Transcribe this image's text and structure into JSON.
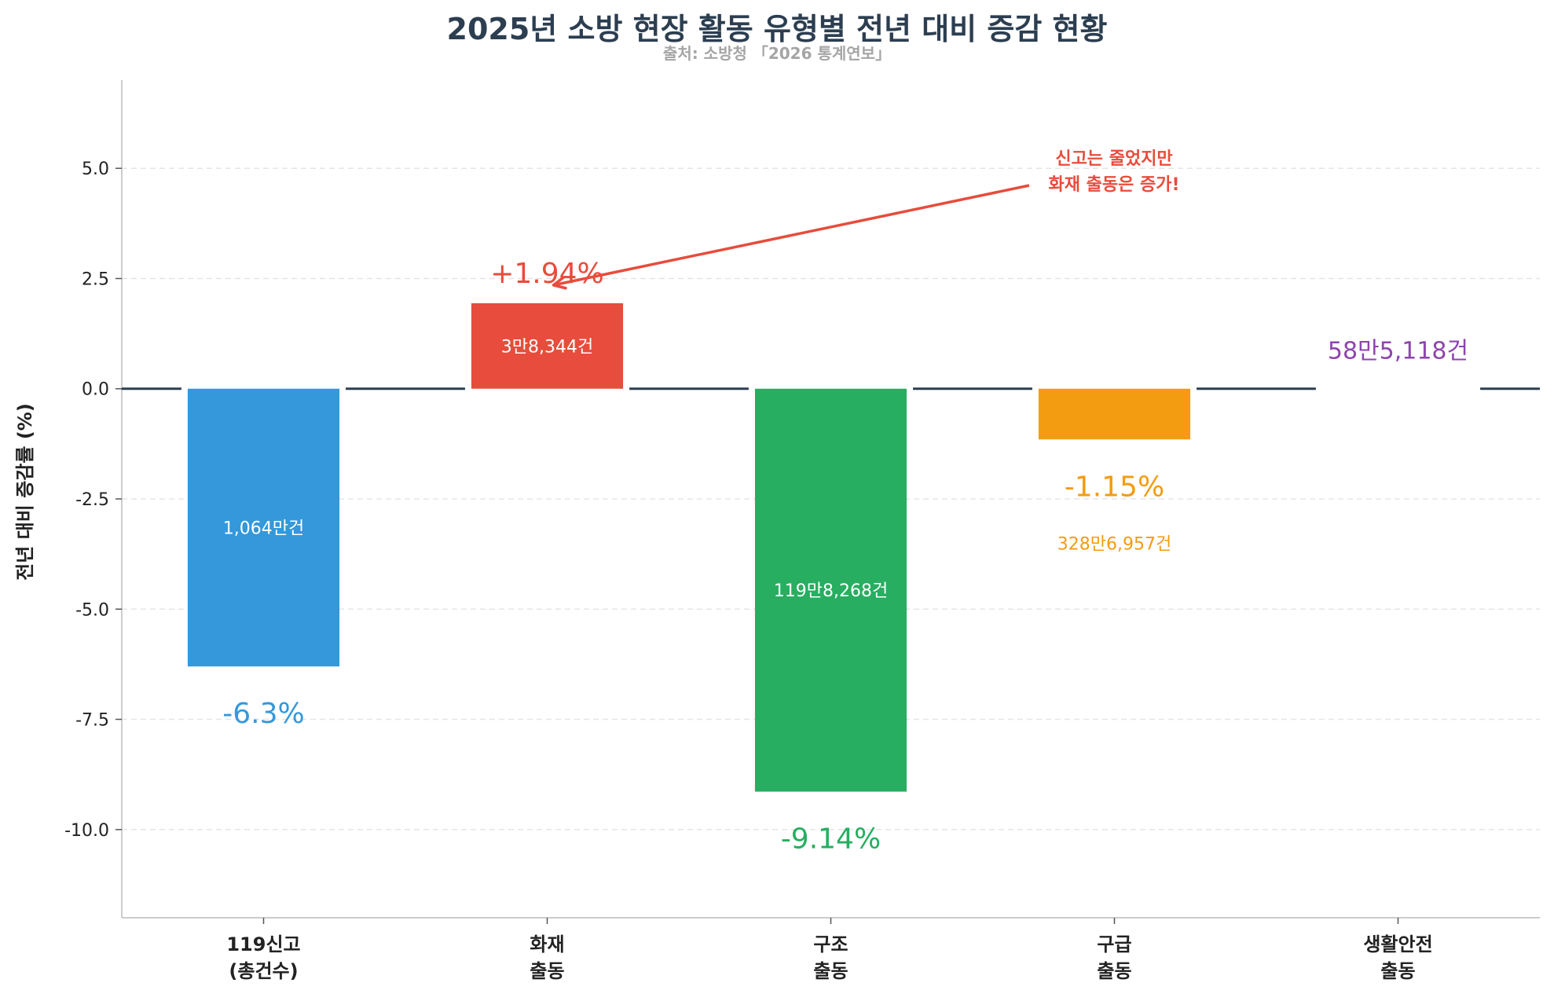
{
  "chart_data": {
    "type": "bar",
    "title": "2025년 소방 현장 활동 유형별 전년 대비 증감 현황",
    "subtitle": "출처: 소방청 「2026 통계연보」",
    "ylabel": "전년 대비 증감률 (%)",
    "xlabel": "",
    "ylim": [
      -12,
      7
    ],
    "yticks": [
      5.0,
      2.5,
      0.0,
      -2.5,
      -5.0,
      -7.5,
      -10.0
    ],
    "ytick_labels": [
      "5.0",
      "2.5",
      "0.0",
      "-2.5",
      "-5.0",
      "-7.5",
      "-10.0"
    ],
    "grid": "y-dashed",
    "categories": [
      {
        "line1": "119신고",
        "line2": "(총건수)"
      },
      {
        "line1": "화재",
        "line2": "출동"
      },
      {
        "line1": "구조",
        "line2": "출동"
      },
      {
        "line1": "구급",
        "line2": "출동"
      },
      {
        "line1": "생활안전",
        "line2": "출동"
      }
    ],
    "values": [
      -6.3,
      1.94,
      -9.14,
      -1.15,
      0
    ],
    "value_labels": [
      "-6.3%",
      "+1.94%",
      "-9.14%",
      "-1.15%",
      ""
    ],
    "count_labels": [
      "1,064만건",
      "3만8,344건",
      "119만8,268건",
      "328만6,957건",
      "58만5,118건"
    ],
    "colors": [
      "#3498db",
      "#e74c3c",
      "#27ae60",
      "#f39c12",
      "#8e44ad"
    ],
    "annotation": {
      "line1": "신고는 줄었지만",
      "line2": "화재 출동은 증가!",
      "color": "#e74c3c",
      "points_to_category": 1
    }
  }
}
